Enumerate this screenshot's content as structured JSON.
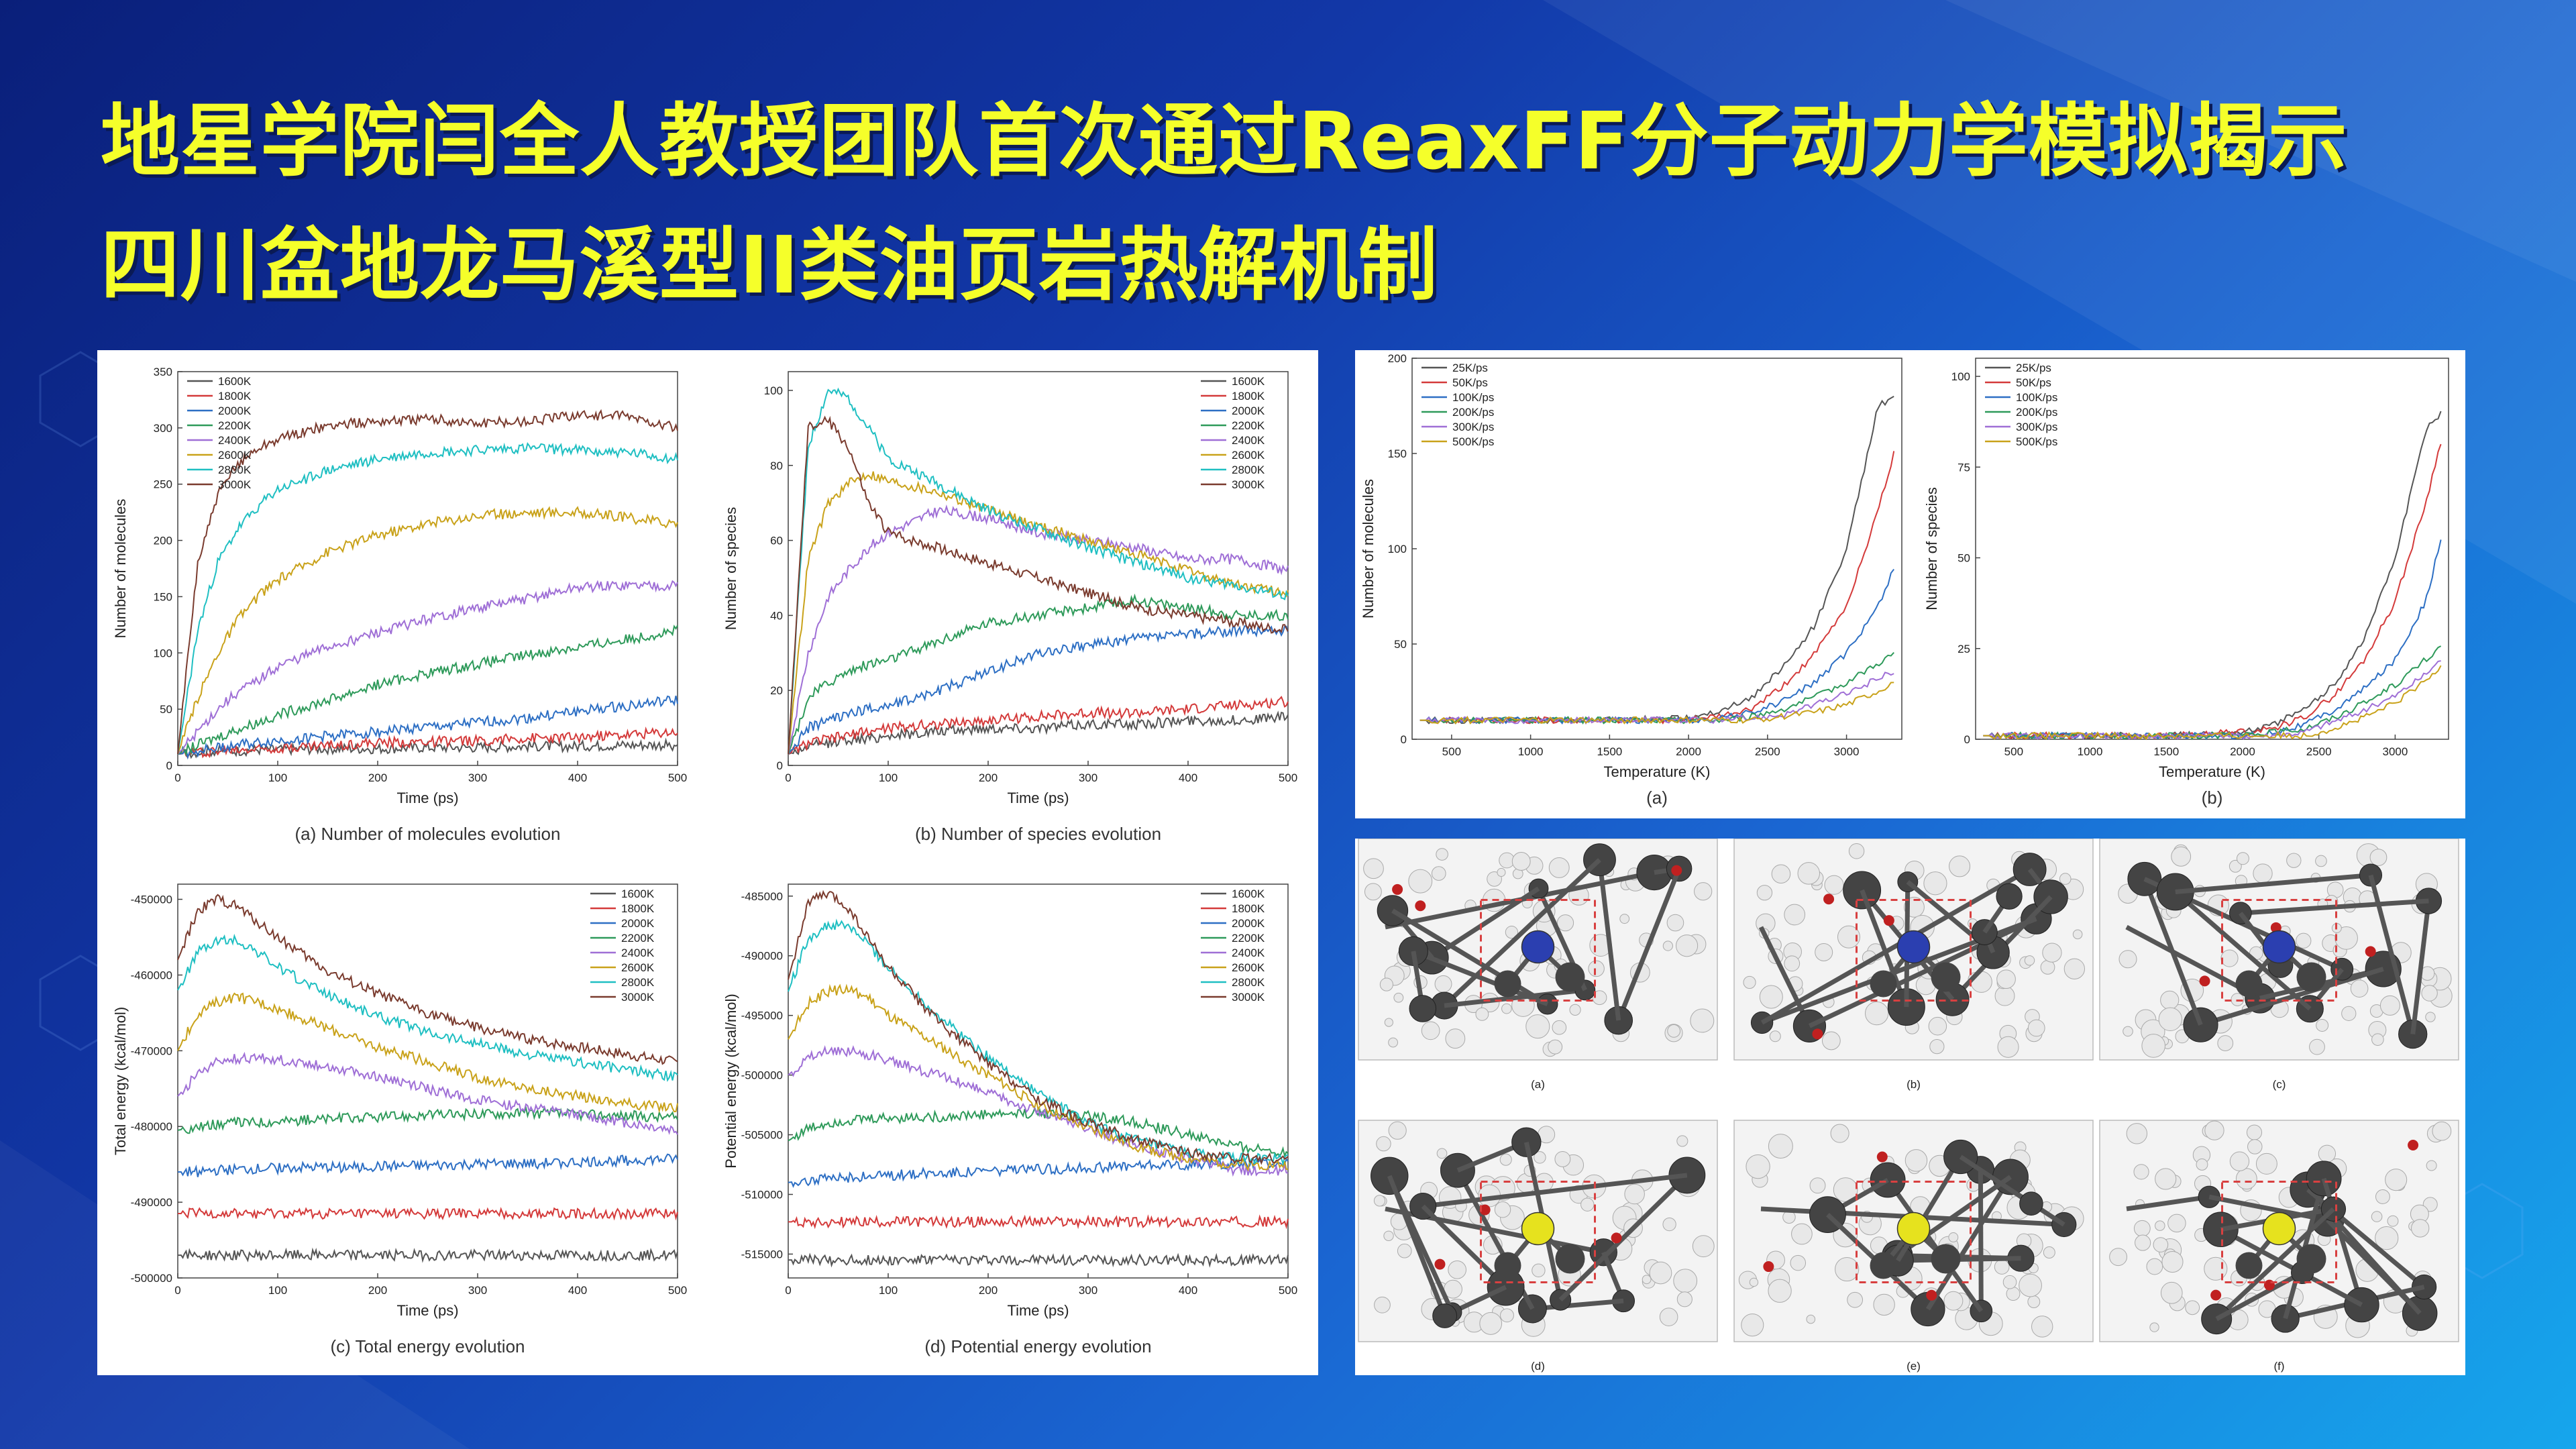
{
  "headline": {
    "line1": "地星学院闫全人教授团队首次通过ReaxFF分子动力学模拟揭示",
    "line2": "四川盆地龙马溪型II类油页岩热解机制"
  },
  "colors": {
    "title": "#f5ff2a",
    "temp_series": [
      "#555555",
      "#d43a3a",
      "#2d6fc4",
      "#2e9a5a",
      "#9f6fd6",
      "#c9a21a",
      "#1fbfc2",
      "#7a3b2e"
    ],
    "rate_series": [
      "#555555",
      "#d43a3a",
      "#2d6fc4",
      "#2e9a5a",
      "#9f6fd6",
      "#c9a21a"
    ],
    "atom_carbon": "#444444",
    "atom_hydrogen": "#e8e8e8",
    "atom_nitrogen": "#2b3fb0",
    "atom_sulfur": "#e6e21e",
    "atom_oxygen": "#c02020",
    "highlight_box": "#d84040"
  },
  "molecule_panels": [
    {
      "caption": "(a)",
      "atom": "nitrogen"
    },
    {
      "caption": "(b)",
      "atom": "nitrogen"
    },
    {
      "caption": "(c)",
      "atom": "nitrogen"
    },
    {
      "caption": "(d)",
      "atom": "sulfur"
    },
    {
      "caption": "(e)",
      "atom": "sulfur"
    },
    {
      "caption": "(f)",
      "atom": "sulfur"
    }
  ],
  "chart_data": [
    {
      "id": "molecules",
      "type": "line",
      "caption": "(a) Number of molecules evolution",
      "xlabel": "Time (ps)",
      "ylabel": "Number of molecules",
      "xlim": [
        0,
        500
      ],
      "ylim": [
        0,
        350
      ],
      "xticks": [
        0,
        100,
        200,
        300,
        400,
        500
      ],
      "yticks": [
        0,
        50,
        100,
        150,
        200,
        250,
        300,
        350
      ],
      "legend": "top-left",
      "x": [
        0,
        20,
        40,
        60,
        80,
        100,
        150,
        200,
        250,
        300,
        350,
        400,
        450,
        500
      ],
      "series": [
        {
          "name": "1600K",
          "values": [
            10,
            12,
            13,
            13,
            14,
            14,
            15,
            15,
            16,
            16,
            17,
            17,
            18,
            18
          ]
        },
        {
          "name": "1800K",
          "values": [
            10,
            12,
            13,
            14,
            15,
            16,
            18,
            20,
            21,
            22,
            24,
            25,
            27,
            30
          ]
        },
        {
          "name": "2000K",
          "values": [
            10,
            13,
            16,
            18,
            20,
            22,
            26,
            30,
            34,
            38,
            42,
            48,
            53,
            58
          ]
        },
        {
          "name": "2200K",
          "values": [
            10,
            18,
            25,
            32,
            38,
            45,
            58,
            72,
            82,
            90,
            98,
            105,
            112,
            120
          ]
        },
        {
          "name": "2400K",
          "values": [
            10,
            30,
            50,
            65,
            75,
            88,
            105,
            118,
            130,
            140,
            148,
            158,
            160,
            160
          ]
        },
        {
          "name": "2600K",
          "values": [
            10,
            60,
            100,
            130,
            150,
            165,
            190,
            205,
            215,
            222,
            225,
            225,
            220,
            215
          ]
        },
        {
          "name": "2800K",
          "values": [
            10,
            120,
            180,
            210,
            230,
            245,
            262,
            272,
            278,
            280,
            282,
            280,
            278,
            272
          ]
        },
        {
          "name": "3000K",
          "values": [
            10,
            180,
            240,
            268,
            282,
            290,
            302,
            306,
            308,
            304,
            306,
            312,
            310,
            300
          ]
        }
      ]
    },
    {
      "id": "species",
      "type": "line",
      "caption": "(b) Number of species evolution",
      "xlabel": "Time (ps)",
      "ylabel": "Number of species",
      "xlim": [
        0,
        500
      ],
      "ylim": [
        0,
        105
      ],
      "xticks": [
        0,
        100,
        200,
        300,
        400,
        500
      ],
      "yticks": [
        0,
        20,
        40,
        60,
        80,
        100
      ],
      "legend": "top-right",
      "x": [
        0,
        20,
        40,
        60,
        80,
        100,
        150,
        200,
        250,
        300,
        350,
        400,
        450,
        500
      ],
      "series": [
        {
          "name": "1600K",
          "values": [
            3,
            5,
            6,
            7,
            7,
            8,
            9,
            10,
            10,
            11,
            11,
            12,
            12,
            13
          ]
        },
        {
          "name": "1800K",
          "values": [
            3,
            6,
            7,
            8,
            9,
            10,
            11,
            12,
            13,
            14,
            14,
            15,
            16,
            17
          ]
        },
        {
          "name": "2000K",
          "values": [
            3,
            10,
            12,
            14,
            15,
            16,
            20,
            25,
            30,
            32,
            34,
            35,
            36,
            36
          ]
        },
        {
          "name": "2200K",
          "values": [
            3,
            18,
            22,
            25,
            27,
            28,
            33,
            38,
            40,
            42,
            44,
            42,
            40,
            40
          ]
        },
        {
          "name": "2400K",
          "values": [
            3,
            30,
            45,
            52,
            58,
            62,
            68,
            66,
            62,
            60,
            58,
            55,
            55,
            52
          ]
        },
        {
          "name": "2600K",
          "values": [
            3,
            55,
            70,
            75,
            78,
            76,
            73,
            68,
            64,
            60,
            56,
            52,
            48,
            46
          ]
        },
        {
          "name": "2800K",
          "values": [
            3,
            85,
            100,
            98,
            90,
            82,
            75,
            68,
            63,
            58,
            54,
            50,
            48,
            45
          ]
        },
        {
          "name": "3000K",
          "values": [
            3,
            90,
            92,
            85,
            70,
            62,
            58,
            54,
            50,
            46,
            42,
            40,
            38,
            36
          ]
        }
      ]
    },
    {
      "id": "total-energy",
      "type": "line",
      "caption": "(c) Total energy evolution",
      "xlabel": "Time (ps)",
      "ylabel": "Total energy (kcal/mol)",
      "xlim": [
        0,
        500
      ],
      "ylim": [
        -500000,
        -448000
      ],
      "xticks": [
        0,
        100,
        200,
        300,
        400,
        500
      ],
      "yticks": [
        -500000,
        -490000,
        -480000,
        -470000,
        -460000,
        -450000
      ],
      "legend": "top-right",
      "x": [
        0,
        20,
        40,
        60,
        80,
        100,
        150,
        200,
        250,
        300,
        350,
        400,
        450,
        500
      ],
      "series": [
        {
          "name": "1600K",
          "values": [
            -497000,
            -497000,
            -497000,
            -497000,
            -497000,
            -497000,
            -497000,
            -497000,
            -497000,
            -497000,
            -497000,
            -497000,
            -497000,
            -497000
          ]
        },
        {
          "name": "1800K",
          "values": [
            -491500,
            -491500,
            -491500,
            -491500,
            -491500,
            -491500,
            -491500,
            -491500,
            -491500,
            -491500,
            -491500,
            -491500,
            -491500,
            -491500
          ]
        },
        {
          "name": "2000K",
          "values": [
            -486000,
            -486000,
            -485800,
            -485700,
            -485600,
            -485500,
            -485400,
            -485300,
            -485200,
            -485000,
            -484900,
            -484700,
            -484500,
            -484300
          ]
        },
        {
          "name": "2200K",
          "values": [
            -480500,
            -480000,
            -479700,
            -479500,
            -479400,
            -479300,
            -479000,
            -478800,
            -478500,
            -478300,
            -478200,
            -478400,
            -478600,
            -478800
          ]
        },
        {
          "name": "2400K",
          "values": [
            -476000,
            -473000,
            -471500,
            -471000,
            -471000,
            -471200,
            -472000,
            -473500,
            -475000,
            -476500,
            -477500,
            -478500,
            -479500,
            -480500
          ]
        },
        {
          "name": "2600K",
          "values": [
            -470000,
            -465000,
            -463500,
            -463000,
            -463500,
            -464500,
            -467000,
            -469500,
            -471500,
            -473500,
            -475000,
            -476000,
            -477000,
            -477500
          ]
        },
        {
          "name": "2800K",
          "values": [
            -462000,
            -457000,
            -455500,
            -455500,
            -457000,
            -459000,
            -462500,
            -465500,
            -467500,
            -469000,
            -470500,
            -471500,
            -472500,
            -473500
          ]
        },
        {
          "name": "3000K",
          "values": [
            -458000,
            -451500,
            -450000,
            -451000,
            -453000,
            -455000,
            -459500,
            -462500,
            -465000,
            -467000,
            -468500,
            -469500,
            -470500,
            -471500
          ]
        }
      ]
    },
    {
      "id": "potential-energy",
      "type": "line",
      "caption": "(d) Potential energy evolution",
      "xlabel": "Time (ps)",
      "ylabel": "Potential energy (kcal/mol)",
      "xlim": [
        0,
        500
      ],
      "ylim": [
        -517000,
        -484000
      ],
      "xticks": [
        0,
        100,
        200,
        300,
        400,
        500
      ],
      "yticks": [
        -515000,
        -510000,
        -505000,
        -500000,
        -495000,
        -490000,
        -485000
      ],
      "legend": "top-right",
      "x": [
        0,
        20,
        40,
        60,
        80,
        100,
        150,
        200,
        250,
        300,
        350,
        400,
        450,
        500
      ],
      "series": [
        {
          "name": "1600K",
          "values": [
            -515500,
            -515500,
            -515500,
            -515500,
            -515500,
            -515500,
            -515500,
            -515500,
            -515500,
            -515500,
            -515500,
            -515500,
            -515500,
            -515500
          ]
        },
        {
          "name": "1800K",
          "values": [
            -512300,
            -512300,
            -512300,
            -512300,
            -512300,
            -512300,
            -512300,
            -512300,
            -512300,
            -512300,
            -512300,
            -512300,
            -512300,
            -512300
          ]
        },
        {
          "name": "2000K",
          "values": [
            -509000,
            -508800,
            -508700,
            -508600,
            -508500,
            -508400,
            -508200,
            -508000,
            -507900,
            -507800,
            -507600,
            -507500,
            -507400,
            -507300
          ]
        },
        {
          "name": "2200K",
          "values": [
            -505500,
            -504500,
            -504000,
            -503800,
            -503700,
            -503600,
            -503500,
            -503300,
            -503200,
            -503400,
            -504000,
            -505000,
            -506000,
            -506500
          ]
        },
        {
          "name": "2400K",
          "values": [
            -500000,
            -498500,
            -498000,
            -498000,
            -498300,
            -498800,
            -500000,
            -501500,
            -503000,
            -504500,
            -506000,
            -507000,
            -508000,
            -508000
          ]
        },
        {
          "name": "2600K",
          "values": [
            -497000,
            -494000,
            -493000,
            -492800,
            -493500,
            -495000,
            -497500,
            -500000,
            -502500,
            -504500,
            -506000,
            -507000,
            -507500,
            -507500
          ]
        },
        {
          "name": "2800K",
          "values": [
            -493000,
            -488500,
            -487500,
            -487500,
            -489000,
            -491000,
            -495000,
            -498500,
            -501500,
            -504000,
            -505500,
            -506500,
            -507000,
            -507000
          ]
        },
        {
          "name": "3000K",
          "values": [
            -492000,
            -485500,
            -484800,
            -486000,
            -488500,
            -491000,
            -495500,
            -499000,
            -502000,
            -504000,
            -505500,
            -506500,
            -507000,
            -507000
          ]
        }
      ]
    },
    {
      "id": "rate-molecules",
      "type": "line",
      "caption": "(a)",
      "xlabel": "Temperature (K)",
      "ylabel": "Number of molecules",
      "xlim": [
        250,
        3350
      ],
      "ylim": [
        0,
        200
      ],
      "xticks": [
        500,
        1000,
        1500,
        2000,
        2500,
        3000
      ],
      "yticks": [
        0,
        50,
        100,
        150,
        200
      ],
      "legend": "top-left",
      "x": [
        300,
        1000,
        1500,
        2000,
        2200,
        2400,
        2600,
        2800,
        3000,
        3200,
        3300
      ],
      "series": [
        {
          "name": "25K/ps",
          "values": [
            10,
            10,
            10,
            11,
            15,
            22,
            38,
            60,
            100,
            175,
            180
          ]
        },
        {
          "name": "50K/ps",
          "values": [
            10,
            10,
            10,
            10,
            12,
            16,
            28,
            45,
            70,
            120,
            150
          ]
        },
        {
          "name": "100K/ps",
          "values": [
            10,
            10,
            10,
            10,
            11,
            14,
            20,
            30,
            45,
            70,
            90
          ]
        },
        {
          "name": "200K/ps",
          "values": [
            10,
            10,
            10,
            10,
            10,
            12,
            16,
            22,
            30,
            40,
            45
          ]
        },
        {
          "name": "300K/ps",
          "values": [
            10,
            10,
            10,
            10,
            10,
            11,
            13,
            18,
            24,
            32,
            36
          ]
        },
        {
          "name": "500K/ps",
          "values": [
            10,
            10,
            10,
            10,
            10,
            10,
            12,
            14,
            18,
            25,
            30
          ]
        }
      ]
    },
    {
      "id": "rate-species",
      "type": "line",
      "caption": "(b)",
      "xlabel": "Temperature (K)",
      "ylabel": "Number of species",
      "xlim": [
        250,
        3350
      ],
      "ylim": [
        0,
        105
      ],
      "xticks": [
        500,
        1000,
        1500,
        2000,
        2500,
        3000
      ],
      "yticks": [
        0,
        25,
        50,
        75,
        100
      ],
      "legend": "top-left",
      "x": [
        300,
        1000,
        1500,
        2000,
        2200,
        2400,
        2600,
        2800,
        3000,
        3200,
        3300
      ],
      "series": [
        {
          "name": "25K/ps",
          "values": [
            1,
            1,
            1,
            2,
            4,
            8,
            15,
            28,
            50,
            85,
            90
          ]
        },
        {
          "name": "50K/ps",
          "values": [
            1,
            1,
            1,
            2,
            3,
            6,
            12,
            22,
            38,
            65,
            82
          ]
        },
        {
          "name": "100K/ps",
          "values": [
            1,
            1,
            1,
            1,
            2,
            4,
            8,
            14,
            22,
            38,
            55
          ]
        },
        {
          "name": "200K/ps",
          "values": [
            1,
            1,
            1,
            1,
            2,
            3,
            6,
            10,
            15,
            22,
            25
          ]
        },
        {
          "name": "300K/ps",
          "values": [
            1,
            1,
            1,
            1,
            1,
            2,
            5,
            8,
            12,
            18,
            22
          ]
        },
        {
          "name": "500K/ps",
          "values": [
            1,
            1,
            1,
            1,
            1,
            1,
            3,
            6,
            10,
            16,
            20
          ]
        }
      ]
    }
  ]
}
